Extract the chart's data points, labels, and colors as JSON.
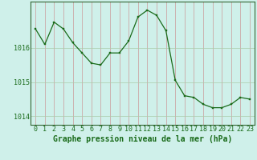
{
  "x": [
    0,
    1,
    2,
    3,
    4,
    5,
    6,
    7,
    8,
    9,
    10,
    11,
    12,
    13,
    14,
    15,
    16,
    17,
    18,
    19,
    20,
    21,
    22,
    23
  ],
  "y": [
    1016.55,
    1016.1,
    1016.75,
    1016.55,
    1016.15,
    1015.85,
    1015.55,
    1015.5,
    1015.85,
    1015.85,
    1016.2,
    1016.9,
    1017.1,
    1016.95,
    1016.5,
    1015.05,
    1014.6,
    1014.55,
    1014.35,
    1014.25,
    1014.25,
    1014.35,
    1014.55,
    1014.5
  ],
  "line_color": "#1a6b1a",
  "marker_color": "#1a6b1a",
  "background_color": "#cff0ea",
  "grid_color_v": "#cc9999",
  "grid_color_h": "#aaccaa",
  "ylabel_ticks": [
    1014,
    1015,
    1016
  ],
  "xlabel": "Graphe pression niveau de la mer (hPa)",
  "xlabel_fontsize": 7,
  "tick_fontsize": 6,
  "ylim": [
    1013.75,
    1017.35
  ],
  "xlim": [
    -0.5,
    23.5
  ]
}
